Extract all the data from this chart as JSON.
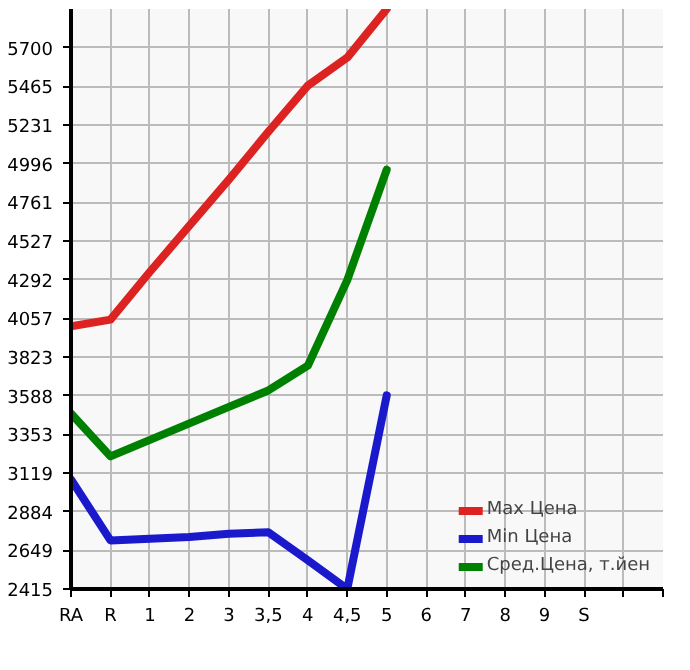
{
  "chart_data": {
    "type": "line",
    "categories": [
      "RA",
      "R",
      "1",
      "2",
      "3",
      "3,5",
      "4",
      "4,5",
      "5",
      "6",
      "7",
      "8",
      "9",
      "S",
      null,
      null
    ],
    "series": [
      {
        "name": "Max Цена",
        "color": "#dd2222",
        "values": [
          4010,
          4050,
          4340,
          4620,
          4900,
          5190,
          5470,
          5640,
          5935,
          null,
          null,
          null,
          null,
          null,
          null,
          null
        ]
      },
      {
        "name": "Min Цена",
        "color": "#1a1acc",
        "values": [
          3080,
          2710,
          2720,
          2730,
          2750,
          2760,
          2590,
          2415,
          3590,
          null,
          null,
          null,
          null,
          null,
          null,
          null
        ]
      },
      {
        "name": "Сред.Цена, т.йен",
        "color": "#008000",
        "values": [
          3480,
          3220,
          3320,
          3420,
          3520,
          3620,
          3770,
          4290,
          4960,
          null,
          null,
          null,
          null,
          null,
          null,
          null
        ]
      }
    ],
    "ylim": [
      2415,
      5935
    ],
    "yticks": [
      2415,
      2649,
      2884,
      3119,
      3353,
      3588,
      3823,
      4057,
      4292,
      4527,
      4761,
      4996,
      5231,
      5465,
      5700
    ],
    "grid": true,
    "legend": "bottom right",
    "marker": "none",
    "line_style": "solid"
  }
}
